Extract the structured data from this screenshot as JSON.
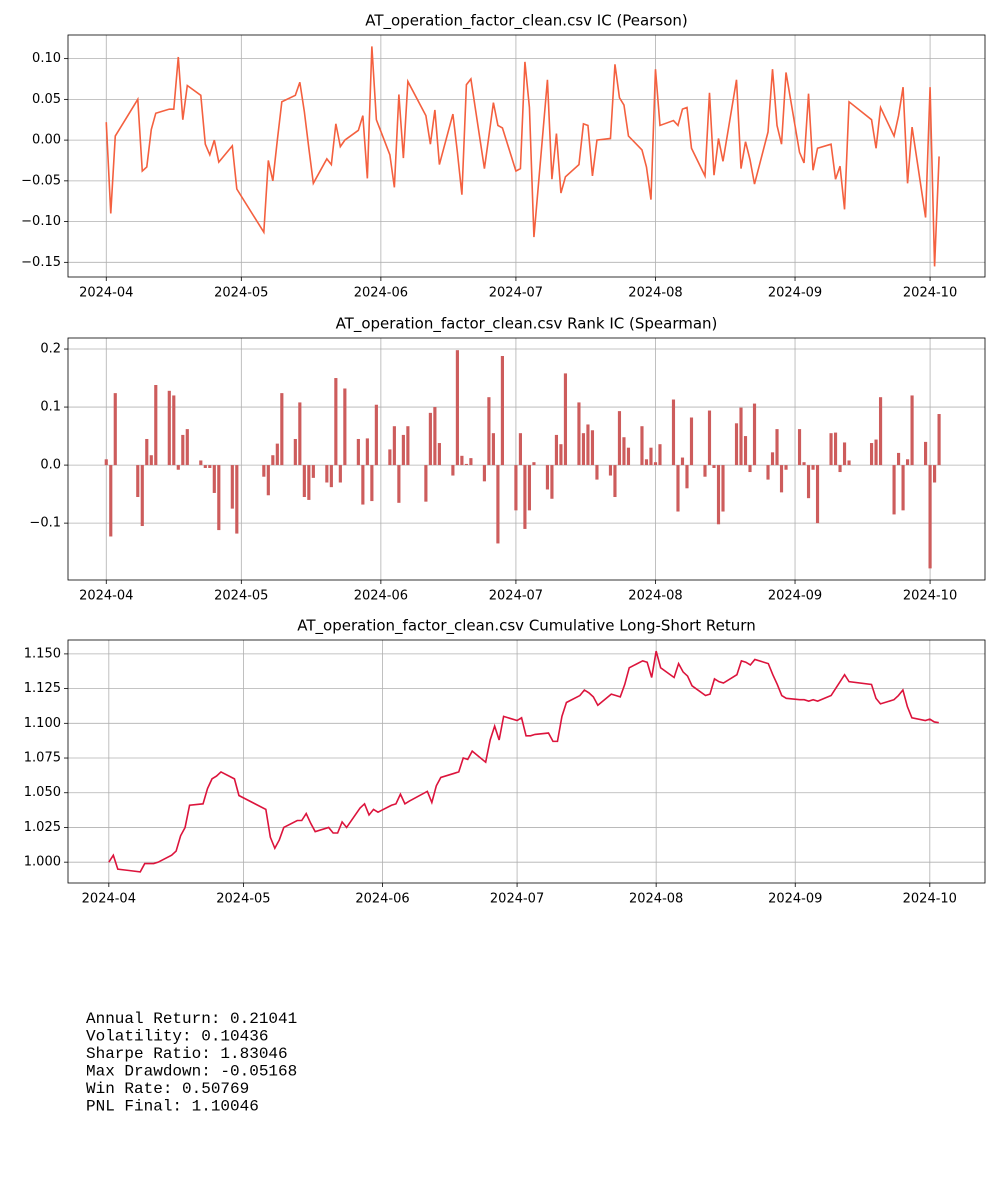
{
  "chart_data": [
    {
      "type": "line",
      "title": "AT_operation_factor_clean.csv IC (Pearson)",
      "color": "#f4603f",
      "grid": true,
      "x": [
        0,
        1,
        2,
        7,
        8,
        9,
        10,
        11,
        14,
        15,
        16,
        17,
        18,
        21,
        22,
        23,
        24,
        25,
        28,
        29,
        35,
        36,
        37,
        38,
        39,
        42,
        43,
        44,
        45,
        46,
        49,
        50,
        51,
        52,
        53,
        56,
        57,
        58,
        59,
        60,
        63,
        64,
        65,
        66,
        67,
        71,
        72,
        73,
        74,
        77,
        78,
        79,
        80,
        81,
        84,
        85,
        86,
        87,
        88,
        91,
        92,
        93,
        94,
        95,
        98,
        99,
        100,
        101,
        102,
        105,
        106,
        107,
        108,
        109,
        112,
        113,
        114,
        115,
        116,
        119,
        120,
        121,
        122,
        123,
        126,
        127,
        128,
        129,
        130,
        133,
        134,
        135,
        136,
        137,
        140,
        141,
        142,
        143,
        144,
        147,
        148,
        149,
        150,
        151,
        154,
        155,
        156,
        157,
        158,
        161,
        162,
        163,
        164,
        165,
        170,
        171,
        172,
        175,
        176,
        177,
        178,
        179,
        182,
        183,
        184,
        185
      ],
      "values": [
        0.022,
        -0.09,
        0.005,
        0.05,
        -0.038,
        -0.033,
        0.013,
        0.033,
        0.038,
        0.038,
        0.102,
        0.025,
        0.067,
        0.055,
        -0.005,
        -0.018,
        0.0,
        -0.027,
        -0.007,
        -0.06,
        -0.113,
        -0.025,
        -0.05,
        0.0,
        0.047,
        0.055,
        0.071,
        0.035,
        -0.01,
        -0.053,
        -0.023,
        -0.03,
        0.02,
        -0.008,
        0.0,
        0.012,
        0.03,
        -0.047,
        0.115,
        0.025,
        -0.018,
        -0.058,
        0.056,
        -0.022,
        0.072,
        0.03,
        -0.005,
        0.037,
        -0.03,
        0.032,
        -0.015,
        -0.067,
        0.068,
        0.075,
        -0.035,
        0.005,
        0.046,
        0.018,
        0.015,
        -0.038,
        -0.035,
        0.096,
        0.04,
        -0.119,
        0.074,
        -0.048,
        0.008,
        -0.065,
        -0.045,
        -0.03,
        0.02,
        0.018,
        -0.044,
        0.0,
        0.002,
        0.093,
        0.052,
        0.043,
        0.005,
        -0.012,
        -0.033,
        -0.073,
        0.087,
        0.018,
        0.024,
        0.018,
        0.038,
        0.04,
        -0.01,
        -0.044,
        0.058,
        -0.043,
        0.002,
        -0.026,
        0.074,
        -0.035,
        -0.002,
        -0.024,
        -0.054,
        0.01,
        0.087,
        0.018,
        -0.005,
        0.083,
        -0.015,
        -0.028,
        0.057,
        -0.037,
        -0.01,
        -0.005,
        -0.048,
        -0.032,
        -0.085,
        0.047,
        0.025,
        -0.01,
        0.04,
        0.005,
        0.03,
        0.065,
        -0.053,
        0.016,
        -0.095,
        0.065,
        -0.155,
        -0.02
      ],
      "xlim": [
        -8.5,
        195.2
      ],
      "xticks": [
        {
          "value": 0,
          "label": "2024-04"
        },
        {
          "value": 30,
          "label": "2024-05"
        },
        {
          "value": 61,
          "label": "2024-06"
        },
        {
          "value": 91,
          "label": "2024-07"
        },
        {
          "value": 122,
          "label": "2024-08"
        },
        {
          "value": 153,
          "label": "2024-09"
        },
        {
          "value": 183,
          "label": "2024-10"
        }
      ],
      "ylim": [
        -0.168,
        0.129
      ],
      "yticks": [
        {
          "value": -0.15,
          "label": "−0.15"
        },
        {
          "value": -0.1,
          "label": "−0.10"
        },
        {
          "value": -0.05,
          "label": "−0.05"
        },
        {
          "value": 0,
          "label": "0.00"
        },
        {
          "value": 0.05,
          "label": "0.05"
        },
        {
          "value": 0.1,
          "label": "0.10"
        }
      ]
    },
    {
      "type": "bar",
      "title": "AT_operation_factor_clean.csv Rank IC (Spearman)",
      "color": "#cd5c5c",
      "grid": true,
      "x": [
        0,
        1,
        2,
        7,
        8,
        9,
        10,
        11,
        14,
        15,
        16,
        17,
        18,
        21,
        22,
        23,
        24,
        25,
        28,
        29,
        35,
        36,
        37,
        38,
        39,
        42,
        43,
        44,
        45,
        46,
        49,
        50,
        51,
        52,
        53,
        56,
        57,
        58,
        59,
        60,
        63,
        64,
        65,
        66,
        67,
        71,
        72,
        73,
        74,
        77,
        78,
        79,
        80,
        81,
        84,
        85,
        86,
        87,
        88,
        91,
        92,
        93,
        94,
        95,
        98,
        99,
        100,
        101,
        102,
        105,
        106,
        107,
        108,
        109,
        112,
        113,
        114,
        115,
        116,
        119,
        120,
        121,
        122,
        123,
        126,
        127,
        128,
        129,
        130,
        133,
        134,
        135,
        136,
        137,
        140,
        141,
        142,
        143,
        144,
        147,
        148,
        149,
        150,
        151,
        154,
        155,
        156,
        157,
        158,
        161,
        162,
        163,
        164,
        165,
        170,
        171,
        172,
        175,
        176,
        177,
        178,
        179,
        182,
        183,
        184,
        185
      ],
      "values": [
        0.01,
        -0.123,
        0.124,
        -0.055,
        -0.105,
        0.045,
        0.017,
        0.138,
        0.128,
        0.12,
        -0.008,
        0.052,
        0.062,
        0.008,
        -0.005,
        -0.005,
        -0.048,
        -0.112,
        -0.075,
        -0.118,
        -0.02,
        -0.052,
        0.017,
        0.037,
        0.124,
        0.045,
        0.108,
        -0.055,
        -0.06,
        -0.022,
        -0.03,
        -0.038,
        0.15,
        -0.03,
        0.132,
        0.045,
        -0.068,
        0.046,
        -0.062,
        0.104,
        0.027,
        0.067,
        -0.065,
        0.052,
        0.067,
        -0.063,
        0.09,
        0.1,
        0.038,
        -0.018,
        0.198,
        0.016,
        0.002,
        0.012,
        -0.028,
        0.117,
        0.055,
        -0.135,
        0.188,
        -0.078,
        0.055,
        -0.11,
        -0.078,
        0.005,
        -0.042,
        -0.058,
        0.052,
        0.036,
        0.158,
        0.108,
        0.055,
        0.07,
        0.06,
        -0.025,
        -0.018,
        -0.055,
        0.093,
        0.048,
        0.03,
        0.067,
        0.01,
        0.03,
        0.005,
        0.036,
        0.113,
        -0.08,
        0.013,
        -0.04,
        0.082,
        -0.02,
        0.094,
        -0.005,
        -0.102,
        -0.08,
        0.072,
        0.099,
        0.05,
        -0.012,
        0.106,
        -0.025,
        0.022,
        0.062,
        -0.047,
        -0.008,
        0.062,
        0.005,
        -0.057,
        -0.008,
        -0.1,
        0.055,
        0.056,
        -0.012,
        0.039,
        0.008,
        0.038,
        0.044,
        0.117,
        -0.085,
        0.021,
        -0.078,
        0.01,
        0.12,
        0.04,
        -0.178,
        -0.03,
        0.088
      ],
      "xlim": [
        -8.5,
        195.2
      ],
      "xticks": [
        {
          "value": 0,
          "label": "2024-04"
        },
        {
          "value": 30,
          "label": "2024-05"
        },
        {
          "value": 61,
          "label": "2024-06"
        },
        {
          "value": 91,
          "label": "2024-07"
        },
        {
          "value": 122,
          "label": "2024-08"
        },
        {
          "value": 153,
          "label": "2024-09"
        },
        {
          "value": 183,
          "label": "2024-10"
        }
      ],
      "ylim": [
        -0.198,
        0.219
      ],
      "yticks": [
        {
          "value": -0.1,
          "label": "−0.1"
        },
        {
          "value": 0,
          "label": "0.0"
        },
        {
          "value": 0.1,
          "label": "0.1"
        },
        {
          "value": 0.2,
          "label": "0.2"
        }
      ]
    },
    {
      "type": "line",
      "title": "AT_operation_factor_clean.csv Cumulative Long-Short Return",
      "color": "#dc143c",
      "grid": true,
      "x": [
        0,
        1,
        2,
        7,
        8,
        9,
        10,
        11,
        14,
        15,
        16,
        17,
        18,
        21,
        22,
        23,
        24,
        25,
        28,
        29,
        35,
        36,
        37,
        38,
        39,
        42,
        43,
        44,
        45,
        46,
        49,
        50,
        51,
        52,
        53,
        56,
        57,
        58,
        59,
        60,
        63,
        64,
        65,
        66,
        67,
        71,
        72,
        73,
        74,
        77,
        78,
        79,
        80,
        81,
        84,
        85,
        86,
        87,
        88,
        91,
        92,
        93,
        94,
        95,
        98,
        99,
        100,
        101,
        102,
        105,
        106,
        107,
        108,
        109,
        112,
        113,
        114,
        115,
        116,
        119,
        120,
        121,
        122,
        123,
        126,
        127,
        128,
        129,
        130,
        133,
        134,
        135,
        136,
        137,
        140,
        141,
        142,
        143,
        144,
        147,
        148,
        149,
        150,
        151,
        154,
        155,
        156,
        157,
        158,
        161,
        162,
        163,
        164,
        165,
        170,
        171,
        172,
        175,
        176,
        177,
        178,
        179,
        182,
        183,
        184,
        185
      ],
      "values": [
        1.0,
        1.005,
        0.995,
        0.993,
        0.999,
        0.999,
        0.999,
        1.0,
        1.005,
        1.008,
        1.019,
        1.025,
        1.041,
        1.042,
        1.053,
        1.06,
        1.062,
        1.065,
        1.06,
        1.048,
        1.038,
        1.018,
        1.01,
        1.016,
        1.025,
        1.03,
        1.03,
        1.035,
        1.028,
        1.022,
        1.025,
        1.021,
        1.021,
        1.029,
        1.025,
        1.039,
        1.042,
        1.034,
        1.038,
        1.036,
        1.041,
        1.042,
        1.049,
        1.042,
        1.044,
        1.051,
        1.043,
        1.055,
        1.061,
        1.064,
        1.065,
        1.075,
        1.074,
        1.08,
        1.072,
        1.088,
        1.098,
        1.088,
        1.105,
        1.102,
        1.104,
        1.091,
        1.091,
        1.092,
        1.093,
        1.087,
        1.087,
        1.105,
        1.115,
        1.12,
        1.124,
        1.122,
        1.119,
        1.113,
        1.121,
        1.12,
        1.119,
        1.128,
        1.14,
        1.145,
        1.144,
        1.133,
        1.152,
        1.14,
        1.133,
        1.143,
        1.137,
        1.134,
        1.127,
        1.12,
        1.121,
        1.132,
        1.13,
        1.129,
        1.135,
        1.145,
        1.144,
        1.142,
        1.146,
        1.143,
        1.135,
        1.128,
        1.12,
        1.118,
        1.117,
        1.117,
        1.116,
        1.117,
        1.116,
        1.12,
        1.125,
        1.13,
        1.135,
        1.13,
        1.128,
        1.118,
        1.114,
        1.117,
        1.12,
        1.124,
        1.112,
        1.104,
        1.102,
        1.103,
        1.101,
        1.10046
      ],
      "xlim": [
        -9.1,
        195.3
      ],
      "xticks": [
        {
          "value": 0,
          "label": "2024-04"
        },
        {
          "value": 30,
          "label": "2024-05"
        },
        {
          "value": 61,
          "label": "2024-06"
        },
        {
          "value": 91,
          "label": "2024-07"
        },
        {
          "value": 122,
          "label": "2024-08"
        },
        {
          "value": 153,
          "label": "2024-09"
        },
        {
          "value": 183,
          "label": "2024-10"
        }
      ],
      "ylim": [
        0.985,
        1.16
      ],
      "yticks": [
        {
          "value": 1.0,
          "label": "1.000"
        },
        {
          "value": 1.025,
          "label": "1.025"
        },
        {
          "value": 1.05,
          "label": "1.050"
        },
        {
          "value": 1.075,
          "label": "1.075"
        },
        {
          "value": 1.1,
          "label": "1.100"
        },
        {
          "value": 1.125,
          "label": "1.125"
        },
        {
          "value": 1.15,
          "label": "1.150"
        }
      ]
    }
  ],
  "stats": [
    "Annual Return: 0.21041",
    "Volatility: 0.10436",
    "Sharpe Ratio: 1.83046",
    "Max Drawdown: -0.05168",
    "Win Rate: 0.50769",
    "PNL Final: 1.10046"
  ]
}
